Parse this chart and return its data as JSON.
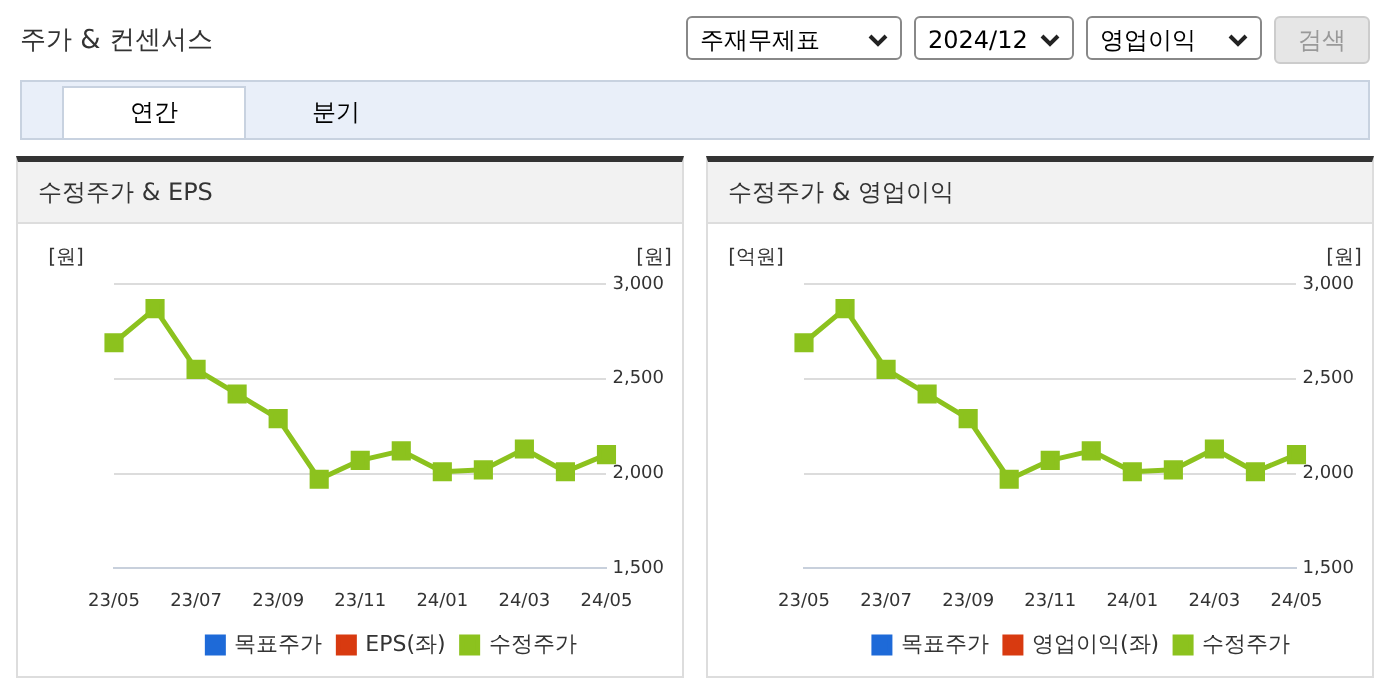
{
  "chart_data": [
    {
      "type": "other",
      "title": "주가 & 컨센서스",
      "annotations": [
        "주재무제표",
        "2024/12",
        "영업이익",
        "검색",
        "연간",
        "분기"
      ]
    },
    {
      "type": "line",
      "title": "수정주가 & EPS",
      "annotations": [
        "[원]"
      ],
      "ylabel": "[원]",
      "categories": [
        "23/05",
        null,
        "23/07",
        null,
        "23/09",
        null,
        "23/11",
        null,
        "24/01",
        null,
        "24/03",
        null,
        "24/05"
      ],
      "series": [
        {
          "name": "목표주가",
          "color": "#1e6ad8",
          "values": [
            null,
            null,
            null,
            null,
            null,
            null,
            null,
            null,
            null,
            null,
            null,
            null,
            null
          ]
        },
        {
          "name": "EPS(좌)",
          "color": "#d83a10",
          "values": [
            null,
            null,
            null,
            null,
            null,
            null,
            null,
            null,
            null,
            null,
            null,
            null,
            null
          ]
        },
        {
          "name": "수정주가",
          "color": "#8cc21e",
          "values": [
            2690,
            2870,
            2550,
            2420,
            2290,
            1970,
            2070,
            2120,
            2010,
            2020,
            2130,
            2010,
            2100
          ]
        }
      ],
      "ylim": [
        1500,
        3000
      ],
      "yticks": [
        {
          "value": 1500,
          "label": "1,500"
        },
        {
          "value": 2000,
          "label": "2,000"
        },
        {
          "value": 2500,
          "label": "2,500"
        },
        {
          "value": 3000,
          "label": "3,000"
        }
      ],
      "grid": "y",
      "legend": "bottom",
      "marker": "square"
    },
    {
      "type": "line",
      "title": "수정주가 & 영업이익",
      "annotations": [
        "[억원]"
      ],
      "ylabel": "[원]",
      "categories": [
        "23/05",
        null,
        "23/07",
        null,
        "23/09",
        null,
        "23/11",
        null,
        "24/01",
        null,
        "24/03",
        null,
        "24/05"
      ],
      "series": [
        {
          "name": "목표주가",
          "color": "#1e6ad8",
          "values": [
            null,
            null,
            null,
            null,
            null,
            null,
            null,
            null,
            null,
            null,
            null,
            null,
            null
          ]
        },
        {
          "name": "영업이익(좌)",
          "color": "#d83a10",
          "values": [
            null,
            null,
            null,
            null,
            null,
            null,
            null,
            null,
            null,
            null,
            null,
            null,
            null
          ]
        },
        {
          "name": "수정주가",
          "color": "#8cc21e",
          "values": [
            2690,
            2870,
            2550,
            2420,
            2290,
            1970,
            2070,
            2120,
            2010,
            2020,
            2130,
            2010,
            2100
          ]
        }
      ],
      "ylim": [
        1500,
        3000
      ],
      "yticks": [
        {
          "value": 1500,
          "label": "1,500"
        },
        {
          "value": 2000,
          "label": "2,000"
        },
        {
          "value": 2500,
          "label": "2,500"
        },
        {
          "value": 3000,
          "label": "3,000"
        }
      ],
      "grid": "y",
      "legend": "bottom",
      "marker": "square"
    }
  ]
}
